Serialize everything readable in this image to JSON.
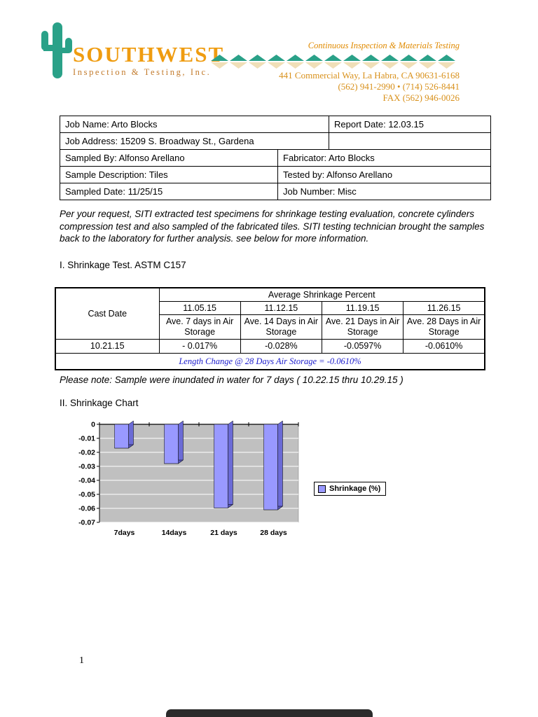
{
  "header": {
    "brand": "SOUTHWEST",
    "brand_sub": "Inspection & Testing, Inc.",
    "tagline": "Continuous Inspection & Materials Testing",
    "address": "441 Commercial Way, La Habra, CA 90631-6168",
    "phone": "(562) 941-2990 • (714) 526-8441",
    "fax": "FAX (562) 946-0026",
    "colors": {
      "teal": "#2aa188",
      "orange": "#ef9c10"
    }
  },
  "job_table": {
    "rows": [
      {
        "left": "Job Name:  Arto Blocks",
        "right": "Report Date: 12.03.15"
      },
      {
        "left": "Job Address: 15209 S. Broadway St., Gardena",
        "right": ""
      },
      {
        "left": "Sampled By: Alfonso Arellano",
        "right": "Fabricator: Arto Blocks"
      },
      {
        "left": "Sample Description: Tiles",
        "right": "Tested by: Alfonso Arellano"
      },
      {
        "left": "Sampled Date: 11/25/15",
        "right": "Job Number: Misc"
      }
    ]
  },
  "intro_paragraph": "Per your request, SITI extracted test specimens for shrinkage testing evaluation, concrete cylinders compression test and also sampled of the fabricated  tiles. SITI testing technician brought the samples back to the laboratory for further analysis. see below for more information.",
  "section1_title": "I. Shrinkage Test. ASTM C157",
  "shrinkage_table": {
    "cast_date_header": "Cast Date",
    "group_header": "Average Shrinkage Percent",
    "date_headers": [
      "11.05.15",
      "11.12.15",
      "11.19.15",
      "11.26.15"
    ],
    "col_headers": [
      "Ave. 7 days in Air Storage",
      "Ave. 14 Days in Air Storage",
      "Ave. 21 Days in Air Storage",
      "Ave. 28 Days in Air Storage"
    ],
    "cast_date": "10.21.15",
    "values": [
      "- 0.017%",
      "-0.028%",
      "-0.0597%",
      "-0.0610%"
    ],
    "footer": "Length Change @ 28 Days Air Storage = -0.0610%"
  },
  "note": "Please note: Sample were inundated in water for 7 days ( 10.22.15 thru 10.29.15 )",
  "section2_title": "II. Shrinkage Chart",
  "chart_data": {
    "type": "bar",
    "categories": [
      "7days",
      "14days",
      "21 days",
      "28 days"
    ],
    "values": [
      -0.017,
      -0.028,
      -0.0597,
      -0.061
    ],
    "legend_label": "Shrinkage (%)",
    "ylim": [
      -0.07,
      0
    ],
    "yticks": [
      0,
      -0.01,
      -0.02,
      -0.03,
      -0.04,
      -0.05,
      -0.06,
      -0.07
    ],
    "ytick_labels": [
      "0",
      "-0.01",
      "-0.02",
      "-0.03",
      "-0.04",
      "-0.05",
      "-0.06",
      "-0.07"
    ],
    "bar_color": "#9999ff",
    "bar_side_color": "#6b6bd6",
    "bar_bottom_color": "#5555b8",
    "plot_bg": "#c0c0c0",
    "grid": "on",
    "legend_position": "right"
  },
  "page_number": "1"
}
